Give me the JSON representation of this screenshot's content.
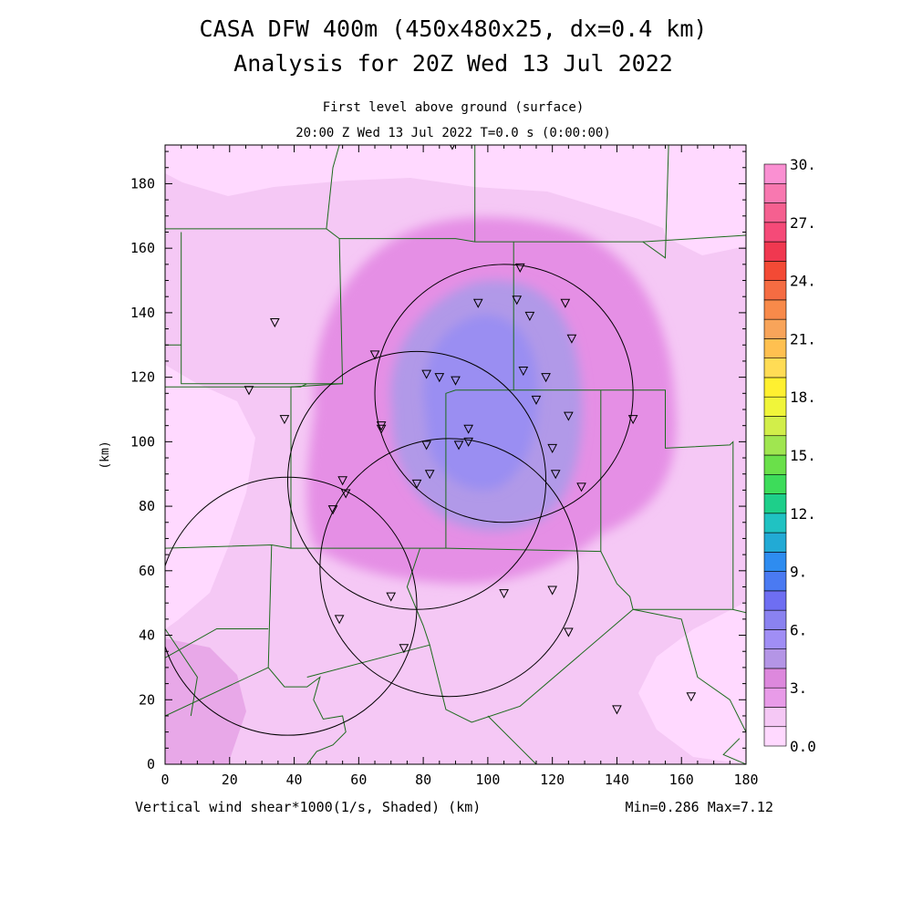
{
  "title": {
    "line1": "CASA DFW 400m (450x480x25, dx=0.4 km)",
    "line2": "Analysis for 20Z Wed 13 Jul 2022"
  },
  "subtitle": {
    "line1": "First level above ground (surface)",
    "line2": "20:00 Z Wed 13 Jul 2022    T=0.0 s (0:00:00)"
  },
  "axes": {
    "x": {
      "range": [
        0,
        180
      ],
      "ticks": [
        "0",
        "20",
        "40",
        "60",
        "80",
        "100",
        "120",
        "140",
        "160",
        "180"
      ]
    },
    "y": {
      "range": [
        0,
        192
      ],
      "ticks": [
        "0",
        "20",
        "40",
        "60",
        "80",
        "100",
        "120",
        "140",
        "160",
        "180"
      ],
      "label": "(km)"
    }
  },
  "footer": {
    "field": "Vertical wind shear*1000(1/s, Shaded)  (km)",
    "minmax": "Min=0.286 Max=7.12"
  },
  "colorbar": {
    "labels": [
      "0.0",
      "3.",
      "6.",
      "9.",
      "12.",
      "15.",
      "18.",
      "21.",
      "24.",
      "27.",
      "30."
    ],
    "colors": [
      "#ffd9ff",
      "#f5c8f5",
      "#e89be8",
      "#dd88dd",
      "#b495e6",
      "#a08ef5",
      "#8a82f0",
      "#6e6ef2",
      "#4a7af2",
      "#2e8cf0",
      "#22aad5",
      "#20c2c2",
      "#1ecf8a",
      "#3ddc5a",
      "#6ae04a",
      "#a0e650",
      "#d2ee4a",
      "#f0f53a",
      "#fff030",
      "#ffdc55",
      "#ffc050",
      "#f8a45a",
      "#f88a4a",
      "#f56c42",
      "#f34a35",
      "#f03850",
      "#f54a78",
      "#f56090",
      "#f878b0",
      "#fa90d2"
    ]
  },
  "radars": [
    {
      "name": "radar-ring-1",
      "cx": 105,
      "cy": 115,
      "r": 40
    },
    {
      "name": "radar-ring-2",
      "cx": 78,
      "cy": 88,
      "r": 40
    },
    {
      "name": "radar-ring-3",
      "cx": 88,
      "cy": 61,
      "r": 40
    },
    {
      "name": "radar-ring-4",
      "cx": 38,
      "cy": 49,
      "r": 40
    }
  ],
  "stations": [
    [
      110,
      154
    ],
    [
      97,
      143
    ],
    [
      109,
      144
    ],
    [
      124,
      143
    ],
    [
      113,
      139
    ],
    [
      126,
      132
    ],
    [
      34,
      137
    ],
    [
      65,
      127
    ],
    [
      81,
      121
    ],
    [
      85,
      120
    ],
    [
      90,
      119
    ],
    [
      111,
      122
    ],
    [
      118,
      120
    ],
    [
      26,
      116
    ],
    [
      37,
      107
    ],
    [
      67,
      105
    ],
    [
      67,
      104
    ],
    [
      115,
      113
    ],
    [
      125,
      108
    ],
    [
      145,
      107
    ],
    [
      94,
      104
    ],
    [
      81,
      99
    ],
    [
      91,
      99
    ],
    [
      94,
      100
    ],
    [
      120,
      98
    ],
    [
      121,
      90
    ],
    [
      129,
      86
    ],
    [
      82,
      90
    ],
    [
      78,
      87
    ],
    [
      55,
      88
    ],
    [
      56,
      84
    ],
    [
      52,
      79
    ],
    [
      70,
      52
    ],
    [
      105,
      53
    ],
    [
      120,
      54
    ],
    [
      54,
      45
    ],
    [
      125,
      41
    ],
    [
      74,
      36
    ],
    [
      140,
      17
    ],
    [
      163,
      21
    ],
    [
      89,
      192
    ]
  ],
  "counties": [
    [
      [
        0,
        166
      ],
      [
        50,
        166
      ],
      [
        52,
        185
      ],
      [
        54,
        192
      ]
    ],
    [
      [
        50,
        166
      ],
      [
        54,
        163
      ],
      [
        90,
        163
      ],
      [
        96,
        162
      ],
      [
        120,
        162
      ],
      [
        148,
        162
      ],
      [
        155,
        157
      ],
      [
        156,
        192
      ]
    ],
    [
      [
        96,
        162
      ],
      [
        96,
        192
      ]
    ],
    [
      [
        148,
        162
      ],
      [
        180,
        164
      ]
    ],
    [
      [
        5,
        165
      ],
      [
        5,
        118
      ],
      [
        44,
        118
      ],
      [
        42,
        117
      ],
      [
        0,
        117
      ]
    ],
    [
      [
        54,
        163
      ],
      [
        55,
        118
      ],
      [
        44,
        118
      ]
    ],
    [
      [
        55,
        118
      ],
      [
        39,
        117
      ],
      [
        39,
        67
      ],
      [
        79,
        67
      ],
      [
        87,
        67
      ]
    ],
    [
      [
        87,
        67
      ],
      [
        87,
        115
      ],
      [
        90,
        116
      ],
      [
        108,
        116
      ],
      [
        108,
        162
      ]
    ],
    [
      [
        108,
        116
      ],
      [
        135,
        116
      ],
      [
        155,
        116
      ],
      [
        155,
        98
      ],
      [
        175,
        99
      ],
      [
        176,
        100
      ],
      [
        176,
        48
      ],
      [
        180,
        47
      ]
    ],
    [
      [
        135,
        116
      ],
      [
        135,
        66
      ],
      [
        87,
        67
      ]
    ],
    [
      [
        135,
        66
      ],
      [
        140,
        56
      ],
      [
        144,
        52
      ],
      [
        145,
        48
      ],
      [
        176,
        48
      ]
    ],
    [
      [
        0,
        67
      ],
      [
        33,
        68
      ],
      [
        32,
        30
      ],
      [
        37,
        24
      ],
      [
        44,
        24
      ],
      [
        48,
        27
      ],
      [
        46,
        20
      ],
      [
        49,
        14
      ],
      [
        55,
        15
      ],
      [
        56,
        10
      ],
      [
        52,
        6
      ],
      [
        47,
        4
      ],
      [
        44,
        0
      ]
    ],
    [
      [
        39,
        67
      ],
      [
        33,
        68
      ]
    ],
    [
      [
        0,
        33
      ],
      [
        16,
        42
      ],
      [
        32,
        42
      ]
    ],
    [
      [
        0,
        15
      ],
      [
        32,
        30
      ]
    ],
    [
      [
        0,
        42
      ],
      [
        10,
        27
      ],
      [
        8,
        15
      ]
    ],
    [
      [
        44,
        27
      ],
      [
        82,
        37
      ],
      [
        87,
        17
      ],
      [
        95,
        13
      ],
      [
        110,
        18
      ],
      [
        145,
        48
      ]
    ],
    [
      [
        82,
        37
      ],
      [
        80,
        43
      ],
      [
        75,
        55
      ],
      [
        79,
        67
      ]
    ],
    [
      [
        100,
        15
      ],
      [
        110,
        5
      ],
      [
        115,
        0
      ]
    ],
    [
      [
        145,
        48
      ],
      [
        160,
        45
      ],
      [
        165,
        27
      ],
      [
        175,
        20
      ],
      [
        180,
        10
      ]
    ],
    [
      [
        180,
        0
      ],
      [
        173,
        3
      ],
      [
        178,
        8
      ]
    ],
    [
      [
        0,
        130
      ],
      [
        5,
        130
      ]
    ]
  ]
}
